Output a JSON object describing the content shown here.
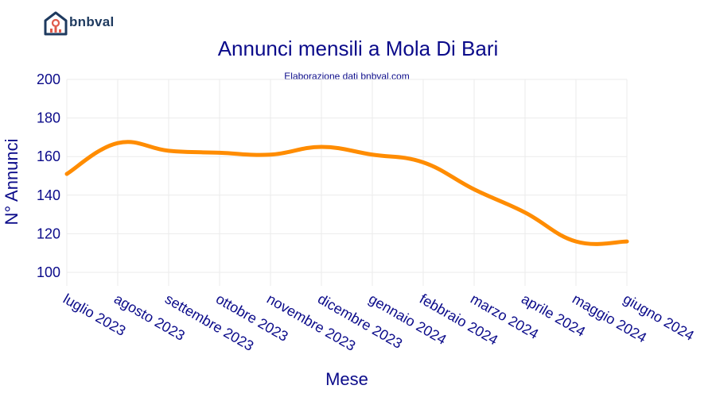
{
  "logo": {
    "text": "bnbval"
  },
  "chart_data": {
    "type": "line",
    "title": "Annunci mensili a Mola Di Bari",
    "subtitle": "Elaborazione dati bnbval.com",
    "xlabel": "Mese",
    "ylabel": "N° Annunci",
    "categories": [
      "luglio 2023",
      "agosto 2023",
      "settembre 2023",
      "ottobre 2023",
      "novembre 2023",
      "dicembre 2023",
      "gennaio 2024",
      "febbraio 2024",
      "marzo 2024",
      "aprile 2024",
      "maggio 2024",
      "giugno 2024"
    ],
    "series": [
      {
        "values": [
          151,
          167,
          163,
          162,
          161,
          165,
          161,
          157,
          143,
          131,
          116,
          116
        ]
      }
    ],
    "ylim": [
      93,
      200
    ],
    "yticks": [
      100,
      120,
      140,
      160,
      180,
      200
    ],
    "grid": true,
    "line_color": "#ff8c00"
  }
}
